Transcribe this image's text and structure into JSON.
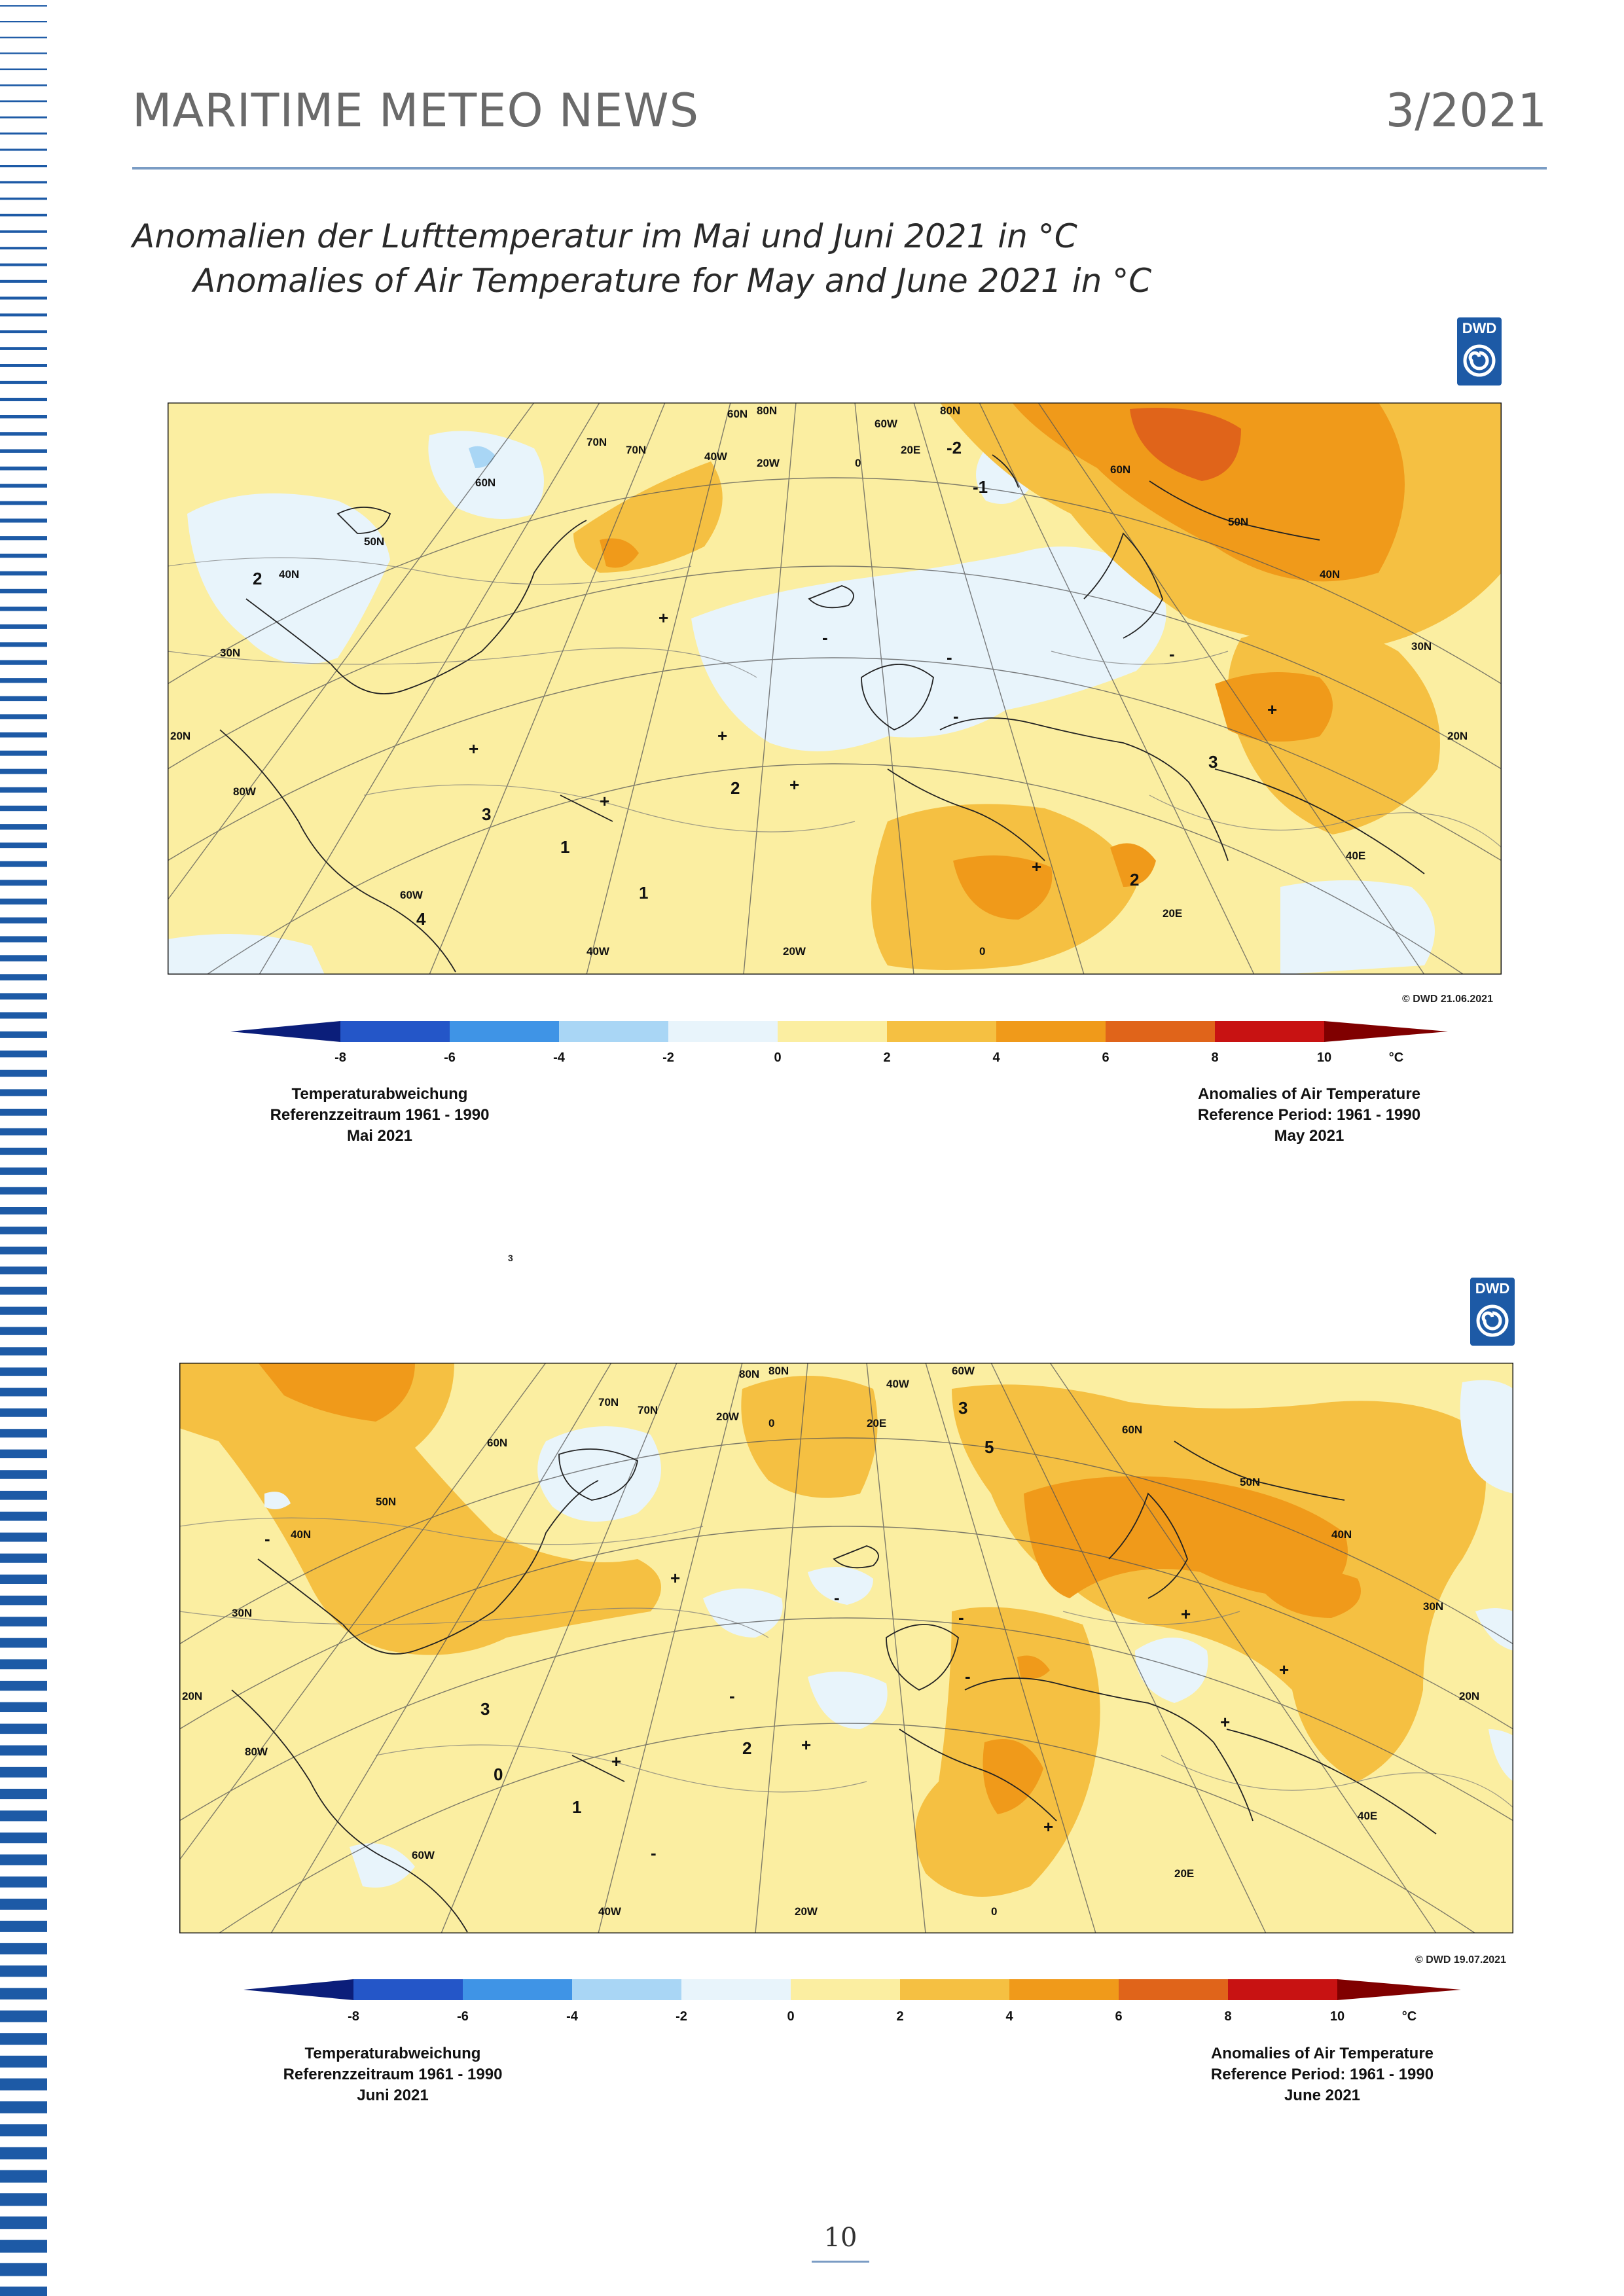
{
  "header": {
    "title": "MARITIME METEO NEWS",
    "issue": "3/2021"
  },
  "caption": {
    "german": "Anomalien der Lufttemperatur im Mai und Juni 2021 in °C",
    "english": "Anomalies of Air Temperature for May and June 2021 in °C"
  },
  "colors": {
    "accent_rule": "#7a9cc4",
    "stripe": "#1d5aa6",
    "legend_swatches": [
      "#0b1e7a",
      "#2456c8",
      "#3f94e6",
      "#a9d6f5",
      "#e8f4fb",
      "#fbeea1",
      "#f5c042",
      "#f09a1a",
      "#e0641a",
      "#c81212",
      "#800000"
    ]
  },
  "maps": [
    {
      "id": "may",
      "logo": "DWD",
      "stamp": "© DWD 21.06.2021",
      "left_note": [
        "Temperaturabweichung",
        "Referenzzeitraum 1961 - 1990",
        "Mai 2021"
      ],
      "right_note": [
        "Anomalies of Air Temperature",
        "Reference Period: 1961 - 1990",
        "May 2021"
      ],
      "map_labels": [
        "60N",
        "80W",
        "60W",
        "40W",
        "20W",
        "0",
        "20E",
        "40E",
        "70N",
        "60N",
        "50N",
        "40N",
        "30N",
        "20N",
        "20N",
        "30N",
        "40N",
        "50N",
        "60N",
        "70N",
        "80N",
        "80N",
        "60W",
        "40W",
        "20W",
        "0",
        "20E"
      ],
      "contour_labels": [
        "-2",
        "-1",
        "2",
        "3",
        "1",
        "+",
        "-",
        "+",
        "-",
        "+",
        "+",
        "+",
        "+",
        "-",
        "-",
        "+",
        "2",
        "1",
        "3",
        "4",
        "2"
      ]
    },
    {
      "id": "june",
      "logo": "DWD",
      "stamp": "© DWD 19.07.2021",
      "left_note": [
        "Temperaturabweichung",
        "Referenzzeitraum 1961 - 1990",
        "Juni 2021"
      ],
      "right_note": [
        "Anomalies of Air Temperature",
        "Reference Period: 1961 - 1990",
        "June 2021"
      ],
      "map_labels": [
        "80N",
        "80W",
        "60W",
        "40W",
        "20W",
        "0",
        "20E",
        "40E",
        "70N",
        "60N",
        "50N",
        "40N",
        "30N",
        "20N",
        "20N",
        "30N",
        "40N",
        "50N",
        "60N",
        "70N",
        "80N",
        "60W",
        "40W",
        "20W",
        "0",
        "20E"
      ],
      "contour_labels": [
        "3",
        "5",
        "-",
        "+",
        "-",
        "+",
        "-",
        "+",
        "-",
        "+",
        "+",
        "-",
        "+",
        "-",
        "+",
        "3",
        "2",
        "1",
        "0"
      ]
    }
  ],
  "legend_ticks": [
    "-8",
    "-6",
    "-4",
    "-2",
    "0",
    "2",
    "4",
    "6",
    "8",
    "10",
    "°C"
  ],
  "stray_mark": "3",
  "page_number": "10"
}
